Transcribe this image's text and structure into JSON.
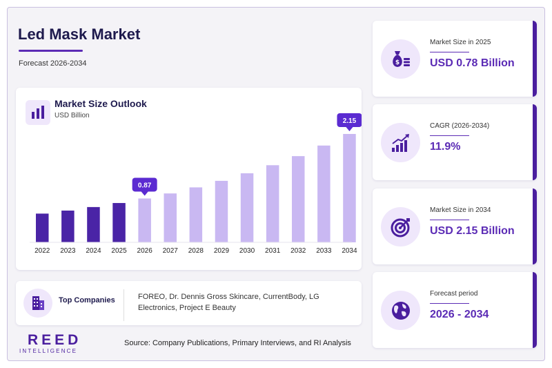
{
  "header": {
    "title": "Led Mask Market",
    "subtitle": "Forecast 2026-2034"
  },
  "chart_card": {
    "title": "Market Size Outlook",
    "unit": "USD Billion",
    "icon": "bar-chart-icon"
  },
  "chart_data": {
    "type": "bar",
    "title": "Market Size Outlook",
    "ylabel": "USD Billion",
    "categories": [
      "2022",
      "2023",
      "2024",
      "2025",
      "2026",
      "2027",
      "2028",
      "2029",
      "2030",
      "2031",
      "2032",
      "2033",
      "2034"
    ],
    "values": [
      0.57,
      0.63,
      0.7,
      0.78,
      0.87,
      0.97,
      1.09,
      1.22,
      1.37,
      1.53,
      1.71,
      1.92,
      2.15
    ],
    "callouts": [
      {
        "index": 4,
        "label": "0.87"
      },
      {
        "index": 12,
        "label": "2.15"
      }
    ],
    "ylim": [
      0,
      2.15
    ],
    "colors": {
      "historical": "#4a24a6",
      "forecast": "#c9b8f2",
      "callout": "#5b2bd1"
    }
  },
  "companies": {
    "label": "Top Companies",
    "text": "FOREO, Dr. Dennis Gross Skincare, CurrentBody, LG Electronics, Project E Beauty",
    "icon": "building-icon"
  },
  "footer": {
    "logo_main": "REED",
    "logo_sub": "INTELLIGENCE",
    "source": "Source: Company Publications, Primary Interviews, and RI Analysis"
  },
  "stats": [
    {
      "label": "Market Size in 2025",
      "value": "USD 0.78 Billion",
      "icon": "money-bag-icon"
    },
    {
      "label": "CAGR (2026-2034)",
      "value": "11.9%",
      "icon": "growth-chart-icon"
    },
    {
      "label": "Market Size in 2034",
      "value": "USD 2.15 Billion",
      "icon": "target-icon"
    },
    {
      "label": "Forecast period",
      "value": "2026 - 2034",
      "icon": "globe-icon"
    }
  ],
  "colors": {
    "accent": "#5b2bb5",
    "brand": "#4a1e9e",
    "icon_bg": "#efe7fb"
  }
}
